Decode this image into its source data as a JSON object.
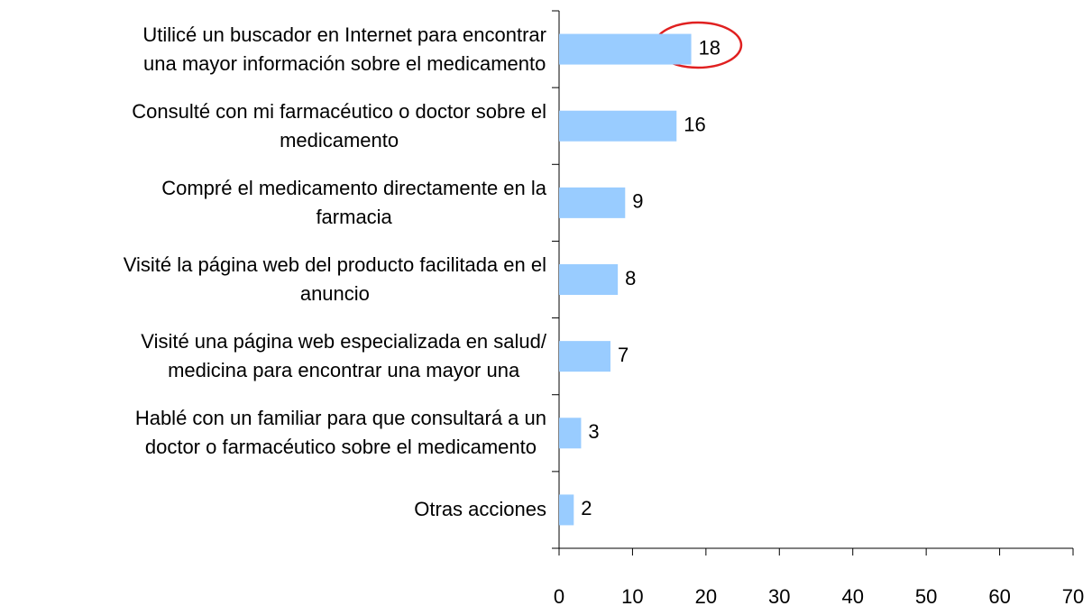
{
  "chart_data": {
    "type": "barh",
    "categories": [
      "Utilicé un buscador en Internet para encontrar\nuna mayor información sobre el medicamento",
      "Consulté con mi farmacéutico o doctor sobre el\nmedicamento",
      "Compré el medicamento directamente en la\nfarmacia",
      "Visité la página web del producto facilitada en el\nanuncio",
      "Visité una página web especializada en salud/\nmedicina para encontrar una mayor una",
      "Hablé con un familiar para que consultará a un\ndoctor o farmacéutico sobre el medicamento",
      "Otras acciones"
    ],
    "values": [
      18,
      16,
      9,
      8,
      7,
      3,
      2
    ],
    "color": "#99ccff",
    "xlim": [
      0,
      70
    ],
    "xticks": [
      0,
      10,
      20,
      30,
      40,
      50,
      60,
      70
    ],
    "grid": false
  }
}
